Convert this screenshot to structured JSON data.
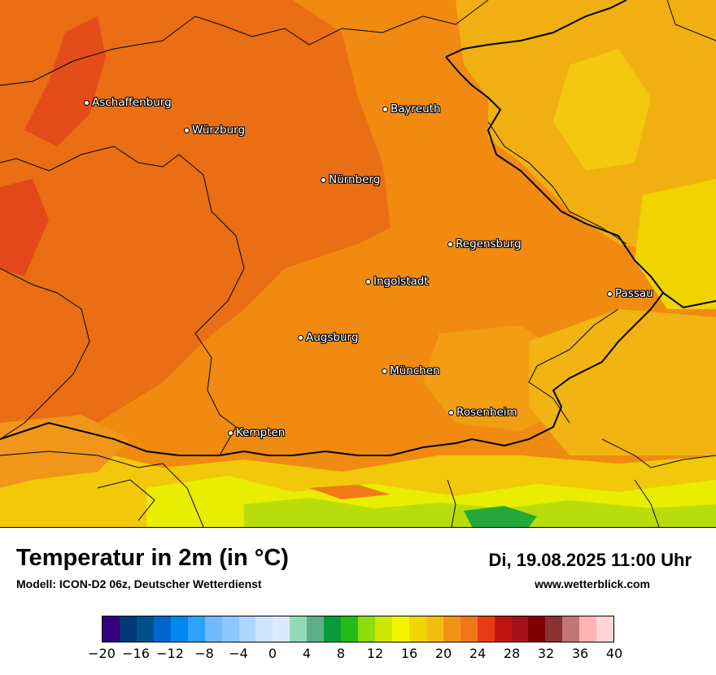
{
  "map": {
    "cities": [
      {
        "name": "Aschaffenburg"
      },
      {
        "name": "Würzburg"
      },
      {
        "name": "Bayreuth"
      },
      {
        "name": "Nürnberg"
      },
      {
        "name": "Regensburg"
      },
      {
        "name": "Ingolstadt"
      },
      {
        "name": "Passau"
      },
      {
        "name": "Augsburg"
      },
      {
        "name": "München"
      },
      {
        "name": "Rosenheim"
      },
      {
        "name": "Kempten"
      }
    ]
  },
  "footer": {
    "title": "Temperatur in 2m (in °C)",
    "subtitle": "Modell: ICON-D2 06z, Deutscher Wetterdienst",
    "datetime": "Di, 19.08.2025 11:00 Uhr",
    "site": "www.wetterblick.com"
  },
  "legend": {
    "colors": [
      "#34007e",
      "#00387a",
      "#034f8e",
      "#0066cc",
      "#0088ef",
      "#31a1ff",
      "#71baff",
      "#8ec7ff",
      "#b0d6ff",
      "#cfe4ff",
      "#dceaff",
      "#93d9b8",
      "#5fae86",
      "#0a9a3a",
      "#24bc16",
      "#8edd0a",
      "#cfe800",
      "#f3f500",
      "#f1d700",
      "#f1be10",
      "#f19416",
      "#f1781a",
      "#e93a14",
      "#bd1313",
      "#a6101b",
      "#7e0000",
      "#8a3232",
      "#c17676",
      "#ffb4b4",
      "#ffd6d6"
    ],
    "ticks": [
      "−20",
      "−16",
      "−12",
      "−8",
      "−4",
      "0",
      "4",
      "8",
      "12",
      "16",
      "20",
      "24",
      "28",
      "32",
      "36",
      "40"
    ]
  }
}
